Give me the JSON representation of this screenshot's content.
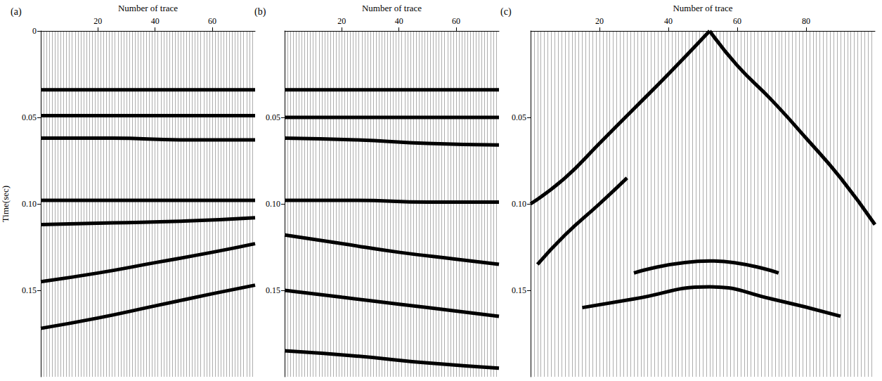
{
  "chart_data": [
    {
      "type": "line",
      "panel": "(a)",
      "x_label": "Number of trace",
      "y_label": "Time(sec)",
      "color": "#000000",
      "grid": true,
      "xlim": [
        0,
        75
      ],
      "xticks": [
        20,
        40,
        60
      ],
      "ylim": [
        0,
        0.2
      ],
      "yticks": [
        0,
        0.05,
        {
          "value": 0.1,
          "label": "0.10"
        },
        0.15
      ],
      "series": [
        {
          "x": [
            0,
            25,
            50,
            75
          ],
          "values": [
            0.034,
            0.034,
            0.034,
            0.034
          ]
        },
        {
          "x": [
            0,
            25,
            50,
            75
          ],
          "values": [
            0.049,
            0.049,
            0.049,
            0.049
          ]
        },
        {
          "x": [
            0,
            25,
            50,
            75
          ],
          "values": [
            0.062,
            0.062,
            0.063,
            0.063
          ]
        },
        {
          "x": [
            0,
            25,
            50,
            75
          ],
          "values": [
            0.098,
            0.098,
            0.098,
            0.098
          ]
        },
        {
          "x": [
            0,
            25,
            50,
            75
          ],
          "values": [
            0.112,
            0.111,
            0.11,
            0.108
          ]
        },
        {
          "x": [
            0,
            20,
            40,
            60,
            75
          ],
          "values": [
            0.145,
            0.14,
            0.134,
            0.128,
            0.123
          ]
        },
        {
          "x": [
            0,
            20,
            40,
            60,
            75
          ],
          "values": [
            0.172,
            0.166,
            0.159,
            0.152,
            0.147
          ]
        }
      ]
    },
    {
      "type": "line",
      "panel": "(b)",
      "x_label": "Number of trace",
      "color": "#000000",
      "grid": true,
      "xlim": [
        0,
        75
      ],
      "xticks": [
        20,
        40,
        60
      ],
      "ylim": [
        0,
        0.2
      ],
      "yticks": [
        0.05,
        {
          "value": 0.1,
          "label": "0.10"
        },
        0.15
      ],
      "series": [
        {
          "x": [
            0,
            25,
            50,
            75
          ],
          "values": [
            0.034,
            0.034,
            0.034,
            0.034
          ]
        },
        {
          "x": [
            0,
            25,
            50,
            75
          ],
          "values": [
            0.05,
            0.05,
            0.05,
            0.05
          ]
        },
        {
          "x": [
            0,
            25,
            50,
            75
          ],
          "values": [
            0.062,
            0.063,
            0.065,
            0.066
          ]
        },
        {
          "x": [
            0,
            25,
            50,
            75
          ],
          "values": [
            0.098,
            0.098,
            0.099,
            0.099
          ]
        },
        {
          "x": [
            0,
            20,
            40,
            60,
            75
          ],
          "values": [
            0.118,
            0.123,
            0.128,
            0.132,
            0.135
          ]
        },
        {
          "x": [
            0,
            20,
            40,
            60,
            75
          ],
          "values": [
            0.15,
            0.154,
            0.158,
            0.162,
            0.165
          ]
        },
        {
          "x": [
            0,
            25,
            50,
            75
          ],
          "values": [
            0.185,
            0.188,
            0.192,
            0.195
          ]
        }
      ]
    },
    {
      "type": "line",
      "panel": "(c)",
      "x_label": "Number of trace",
      "color": "#000000",
      "grid": true,
      "xlim": [
        0,
        100
      ],
      "xticks": [
        20,
        40,
        60,
        80
      ],
      "ylim": [
        0,
        0.2
      ],
      "yticks": [
        0.05,
        {
          "value": 0.1,
          "label": "0.10"
        },
        0.15
      ],
      "series": [
        {
          "x": [
            52,
            40,
            30,
            20,
            10,
            0
          ],
          "values": [
            0.0,
            0.025,
            0.045,
            0.065,
            0.085,
            0.1
          ]
        },
        {
          "x": [
            28,
            20,
            10,
            2
          ],
          "values": [
            0.085,
            0.1,
            0.118,
            0.135
          ]
        },
        {
          "x": [
            52,
            60,
            70,
            80,
            90,
            100
          ],
          "values": [
            0.0,
            0.02,
            0.04,
            0.062,
            0.085,
            0.112
          ]
        },
        {
          "x": [
            30,
            52,
            72
          ],
          "values": [
            0.14,
            0.133,
            0.14
          ]
        },
        {
          "x": [
            15,
            30,
            52,
            70,
            90
          ],
          "values": [
            0.16,
            0.155,
            0.148,
            0.155,
            0.165
          ]
        }
      ]
    }
  ]
}
